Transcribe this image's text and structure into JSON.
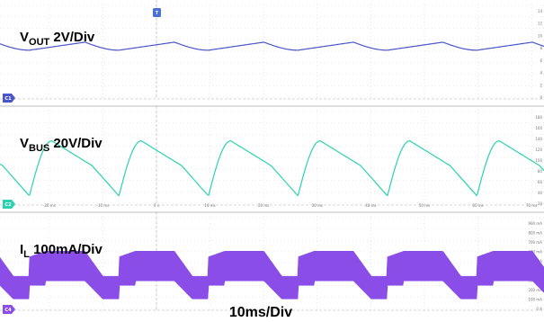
{
  "chart_data": {
    "type": "line",
    "title": "",
    "timebase": "10ms/Div",
    "x_ticks": [
      "-20 ms",
      "-10 ms",
      "0 s",
      "10 ms",
      "20 ms",
      "30 ms",
      "40 ms",
      "50 ms",
      "60 ms",
      "70 ms"
    ],
    "panels": [
      {
        "name": "vout",
        "label_main": "V",
        "label_sub": "OUT",
        "label_scale": " 2V/Div",
        "channel_marker": "C1",
        "color": "#4a55c8",
        "right_ticks": [
          "14",
          "12",
          "10",
          "8",
          "6",
          "4",
          "2",
          "0"
        ],
        "series": {
          "period_ms": 16.7,
          "min_div": 4.25,
          "max_div": 4.95
        }
      },
      {
        "name": "vbus",
        "label_main": "V",
        "label_sub": "BUS",
        "label_scale": " 20V/Div",
        "channel_marker": "C2",
        "color": "#2ad2b0",
        "right_ticks": [
          "180",
          "160",
          "140",
          "120",
          "100",
          "80",
          "60",
          "40",
          "20"
        ],
        "series": {
          "period_ms": 16.7,
          "min_div": 0.8,
          "max_div": 5.6
        }
      },
      {
        "name": "il",
        "label_main": "I",
        "label_sub": "L",
        "label_scale": " 100mA/Div",
        "channel_marker": "C4",
        "color": "#8a4de8",
        "right_ticks": [
          "900 mA",
          "800 mA",
          "700 mA",
          "600 mA",
          "500 mA",
          "400 mA",
          "300 mA",
          "200 mA",
          "100 mA",
          "0 A"
        ],
        "series": {
          "period_ms": 16.7,
          "env_top_div": 5.2,
          "env_bottom_div": 1.0,
          "ripple_div": 2.6
        }
      }
    ],
    "trigger_marker": "T"
  }
}
